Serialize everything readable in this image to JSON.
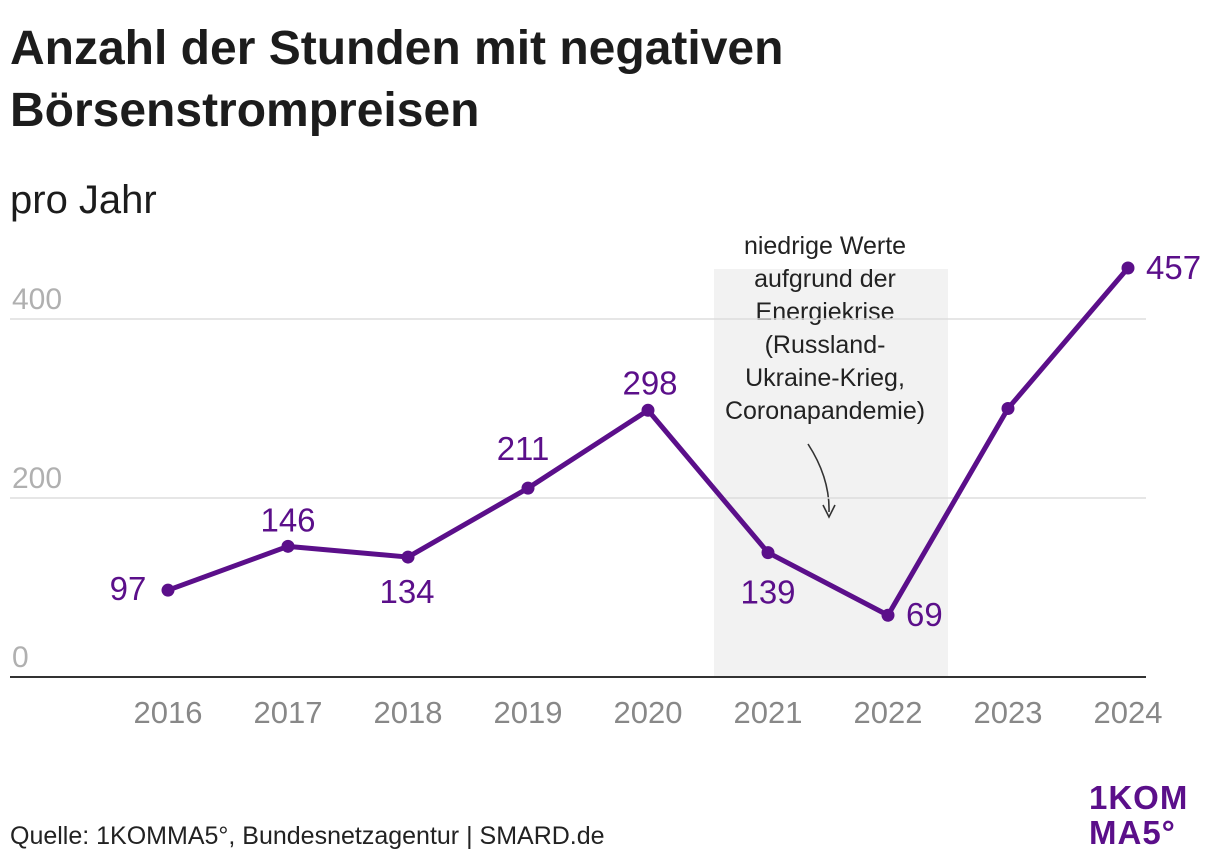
{
  "header": {
    "title": "Anzahl der Stunden mit negativen Börsenstrompreisen",
    "subtitle": "pro Jahr"
  },
  "footer": {
    "source": "Quelle: 1KOMMA5°, Bundesnetzagentur | SMARD.de"
  },
  "logo": {
    "line1": "1KOM",
    "line2": "MA5°"
  },
  "colors": {
    "line": "#5b0f8a",
    "grid": "#dddddd",
    "axis": "#333333",
    "tick": "#888888",
    "ytick": "#b0b0b0",
    "highlight": "#f2f2f2"
  },
  "chart_data": {
    "type": "line",
    "categories": [
      "2016",
      "2017",
      "2018",
      "2019",
      "2020",
      "2021",
      "2022",
      "2023",
      "2024"
    ],
    "series": [
      {
        "values": [
          97,
          146,
          134,
          211,
          298,
          139,
          69,
          300,
          457
        ],
        "labels": [
          "97",
          "146",
          "134",
          "211",
          "298",
          "139",
          "69",
          "",
          "457"
        ]
      }
    ],
    "ylim": [
      0,
      400
    ],
    "yticks": [
      0,
      200,
      400
    ],
    "grid": true,
    "legend": "none",
    "highlight": {
      "from": "2021",
      "to": "2022",
      "annotation": [
        "niedrige Werte",
        "aufgrund der",
        "Energiekrise",
        "(Russland-",
        "Ukraine-Krieg,",
        "Coronapandemie)"
      ]
    }
  }
}
